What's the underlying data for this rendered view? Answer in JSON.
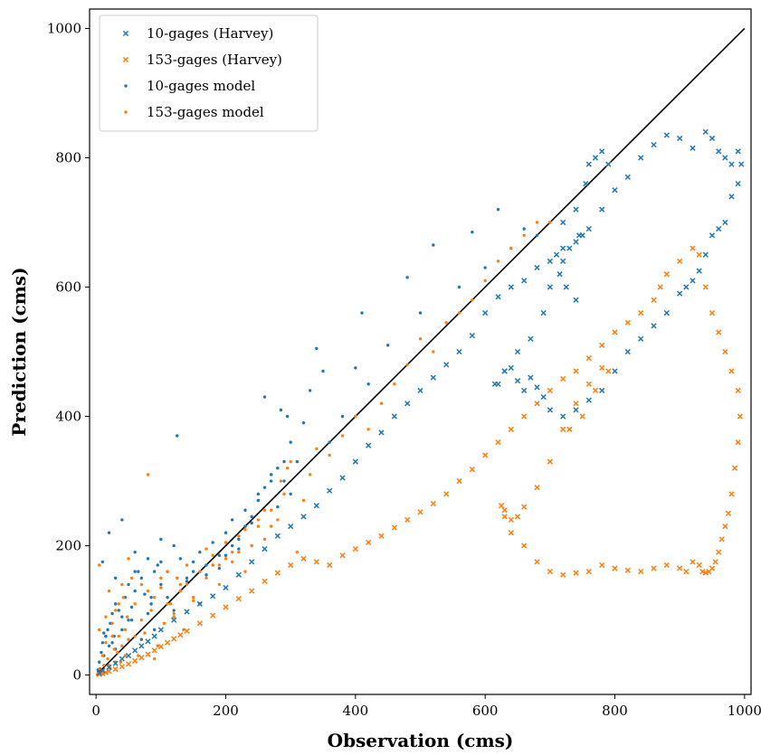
{
  "chart_data": {
    "type": "scatter",
    "title": "",
    "xlabel": "Observation (cms)",
    "ylabel": "Prediction (cms)",
    "xlim": [
      -10,
      1010
    ],
    "ylim": [
      -30,
      1030
    ],
    "xticks": [
      0,
      200,
      400,
      600,
      800,
      1000
    ],
    "yticks": [
      0,
      200,
      400,
      600,
      800,
      1000
    ],
    "legend_position": "upper-left",
    "grid": false,
    "colors": {
      "blue": "#1f77b4",
      "orange": "#ff7f0e"
    },
    "reference_line": {
      "x": [
        0,
        1000
      ],
      "y": [
        0,
        1000
      ],
      "color": "#000000"
    },
    "series": [
      {
        "name": "10-gages (Harvey)",
        "marker": "x",
        "color": "#1f77b4",
        "x": [
          5,
          10,
          20,
          30,
          40,
          50,
          60,
          70,
          80,
          90,
          100,
          120,
          140,
          160,
          180,
          200,
          220,
          240,
          260,
          280,
          300,
          320,
          340,
          360,
          380,
          400,
          420,
          440,
          460,
          480,
          500,
          520,
          540,
          560,
          580,
          600,
          620,
          640,
          660,
          680,
          700,
          720,
          740,
          750,
          760,
          780,
          800,
          820,
          840,
          860,
          880,
          900,
          920,
          940,
          950,
          960,
          970,
          980,
          990,
          995,
          990,
          980,
          970,
          960,
          950,
          940,
          930,
          920,
          910,
          900,
          880,
          860,
          840,
          820,
          800,
          780,
          760,
          740,
          720,
          700,
          690,
          680,
          670,
          660,
          650,
          640,
          630,
          620,
          615,
          630,
          650,
          670,
          690,
          700,
          710,
          720,
          740,
          755,
          760,
          770,
          780,
          790,
          745,
          730,
          720,
          715,
          725,
          740
        ],
        "y": [
          3,
          7,
          12,
          18,
          25,
          30,
          38,
          45,
          52,
          60,
          70,
          85,
          98,
          110,
          122,
          135,
          155,
          175,
          195,
          215,
          230,
          245,
          262,
          285,
          305,
          330,
          355,
          375,
          400,
          420,
          440,
          460,
          480,
          500,
          525,
          560,
          585,
          600,
          610,
          630,
          640,
          660,
          670,
          680,
          690,
          720,
          750,
          770,
          800,
          820,
          835,
          830,
          815,
          840,
          830,
          810,
          800,
          790,
          810,
          790,
          760,
          740,
          700,
          690,
          680,
          650,
          625,
          610,
          600,
          590,
          560,
          540,
          520,
          500,
          470,
          440,
          425,
          410,
          400,
          410,
          430,
          445,
          460,
          440,
          455,
          475,
          470,
          450,
          450,
          470,
          500,
          520,
          560,
          600,
          650,
          700,
          720,
          760,
          790,
          800,
          810,
          790,
          680,
          660,
          640,
          620,
          600,
          580
        ]
      },
      {
        "name": "153-gages (Harvey)",
        "marker": "x",
        "color": "#ff7f0e",
        "x": [
          5,
          10,
          15,
          20,
          30,
          40,
          50,
          60,
          70,
          80,
          90,
          100,
          110,
          120,
          130,
          140,
          160,
          180,
          200,
          220,
          240,
          260,
          280,
          300,
          320,
          340,
          360,
          380,
          400,
          420,
          440,
          460,
          480,
          500,
          520,
          540,
          560,
          580,
          600,
          620,
          640,
          660,
          680,
          700,
          720,
          740,
          760,
          780,
          800,
          820,
          840,
          860,
          870,
          880,
          900,
          920,
          930,
          940,
          950,
          960,
          970,
          980,
          990,
          993,
          990,
          985,
          980,
          975,
          970,
          965,
          960,
          955,
          950,
          945,
          940,
          935,
          930,
          920,
          910,
          900,
          880,
          860,
          840,
          820,
          800,
          780,
          760,
          740,
          720,
          700,
          680,
          660,
          640,
          630,
          625,
          630,
          640,
          650,
          660,
          680,
          700,
          720,
          740,
          760,
          780,
          790,
          770,
          750,
          730
        ],
        "y": [
          1,
          2,
          4,
          6,
          9,
          13,
          17,
          22,
          27,
          32,
          38,
          44,
          50,
          56,
          62,
          68,
          80,
          92,
          105,
          118,
          130,
          145,
          158,
          170,
          180,
          175,
          170,
          185,
          195,
          205,
          215,
          228,
          240,
          252,
          265,
          280,
          300,
          318,
          340,
          360,
          380,
          400,
          420,
          440,
          458,
          470,
          490,
          510,
          530,
          545,
          560,
          580,
          600,
          620,
          640,
          660,
          650,
          600,
          560,
          530,
          500,
          470,
          440,
          400,
          360,
          320,
          280,
          250,
          230,
          210,
          190,
          175,
          165,
          160,
          158,
          160,
          170,
          175,
          160,
          165,
          170,
          165,
          160,
          162,
          165,
          170,
          160,
          158,
          155,
          160,
          175,
          200,
          220,
          245,
          262,
          255,
          240,
          245,
          260,
          290,
          330,
          380,
          420,
          450,
          475,
          470,
          440,
          400,
          380
        ]
      },
      {
        "name": "10-gages model",
        "marker": "dot",
        "color": "#1f77b4",
        "x": [
          3,
          5,
          8,
          10,
          12,
          15,
          18,
          20,
          22,
          25,
          28,
          30,
          35,
          40,
          45,
          50,
          55,
          60,
          65,
          70,
          75,
          80,
          85,
          90,
          95,
          100,
          110,
          120,
          125,
          130,
          140,
          150,
          160,
          170,
          180,
          190,
          200,
          210,
          220,
          230,
          240,
          250,
          260,
          270,
          280,
          285,
          290,
          295,
          300,
          310,
          320,
          330,
          340,
          350,
          360,
          380,
          400,
          410,
          420,
          450,
          480,
          500,
          520,
          560,
          580,
          600,
          620,
          640,
          660,
          680,
          700,
          10,
          15,
          20,
          25,
          30,
          40,
          50,
          60,
          70,
          80,
          90,
          100,
          110,
          120,
          130,
          140,
          150,
          160,
          170,
          180,
          190,
          200,
          210,
          220,
          230,
          240,
          250,
          260,
          270,
          280,
          290,
          300,
          40,
          60,
          85,
          100,
          12,
          30,
          55
        ],
        "y": [
          8,
          20,
          35,
          50,
          30,
          60,
          70,
          45,
          80,
          95,
          60,
          110,
          100,
          90,
          120,
          140,
          105,
          130,
          160,
          150,
          125,
          180,
          110,
          160,
          170,
          175,
          160,
          200,
          370,
          180,
          150,
          175,
          190,
          170,
          205,
          185,
          220,
          240,
          210,
          255,
          235,
          270,
          430,
          300,
          320,
          410,
          330,
          400,
          360,
          330,
          390,
          440,
          505,
          470,
          360,
          400,
          475,
          560,
          450,
          510,
          615,
          560,
          665,
          600,
          685,
          630,
          720,
          660,
          690,
          680,
          700,
          175,
          60,
          220,
          50,
          40,
          70,
          85,
          190,
          55,
          95,
          70,
          140,
          120,
          100,
          130,
          145,
          160,
          110,
          155,
          170,
          165,
          185,
          200,
          195,
          230,
          245,
          280,
          290,
          310,
          260,
          300,
          280,
          240,
          160,
          120,
          210,
          65,
          150,
          85
        ]
      },
      {
        "name": "153-gages model",
        "marker": "dot",
        "color": "#ff7f0e",
        "x": [
          2,
          4,
          5,
          6,
          8,
          10,
          12,
          15,
          18,
          20,
          22,
          25,
          28,
          30,
          33,
          35,
          38,
          40,
          42,
          45,
          48,
          50,
          55,
          60,
          65,
          70,
          75,
          80,
          85,
          90,
          95,
          100,
          105,
          110,
          115,
          120,
          125,
          130,
          135,
          140,
          150,
          160,
          170,
          180,
          190,
          200,
          210,
          220,
          230,
          240,
          250,
          260,
          270,
          280,
          285,
          290,
          295,
          300,
          310,
          320,
          330,
          340,
          360,
          380,
          400,
          420,
          440,
          460,
          480,
          500,
          520,
          540,
          560,
          580,
          600,
          620,
          640,
          660,
          680,
          700,
          5,
          10,
          15,
          20,
          25,
          30,
          35,
          40,
          45,
          50,
          60,
          70,
          80,
          90,
          100,
          110,
          120,
          130,
          140,
          150,
          160,
          170,
          180,
          190,
          200,
          210,
          220,
          230,
          240,
          250,
          260,
          270
        ],
        "y": [
          1,
          3,
          170,
          10,
          5,
          30,
          15,
          50,
          25,
          130,
          10,
          80,
          40,
          100,
          35,
          60,
          20,
          45,
          120,
          70,
          90,
          55,
          150,
          110,
          30,
          140,
          65,
          310,
          100,
          120,
          45,
          135,
          80,
          160,
          110,
          95,
          150,
          130,
          70,
          140,
          115,
          160,
          150,
          170,
          140,
          180,
          175,
          190,
          160,
          200,
          230,
          210,
          255,
          240,
          300,
          280,
          320,
          330,
          190,
          270,
          310,
          350,
          340,
          370,
          400,
          380,
          420,
          450,
          480,
          520,
          500,
          545,
          560,
          580,
          610,
          640,
          660,
          680,
          700,
          700,
          70,
          2,
          90,
          15,
          60,
          20,
          110,
          140,
          30,
          180,
          60,
          85,
          130,
          25,
          150,
          110,
          90,
          140,
          170,
          120,
          160,
          195,
          185,
          170,
          205,
          190,
          215,
          225,
          200,
          240,
          255,
          230
        ]
      }
    ]
  }
}
